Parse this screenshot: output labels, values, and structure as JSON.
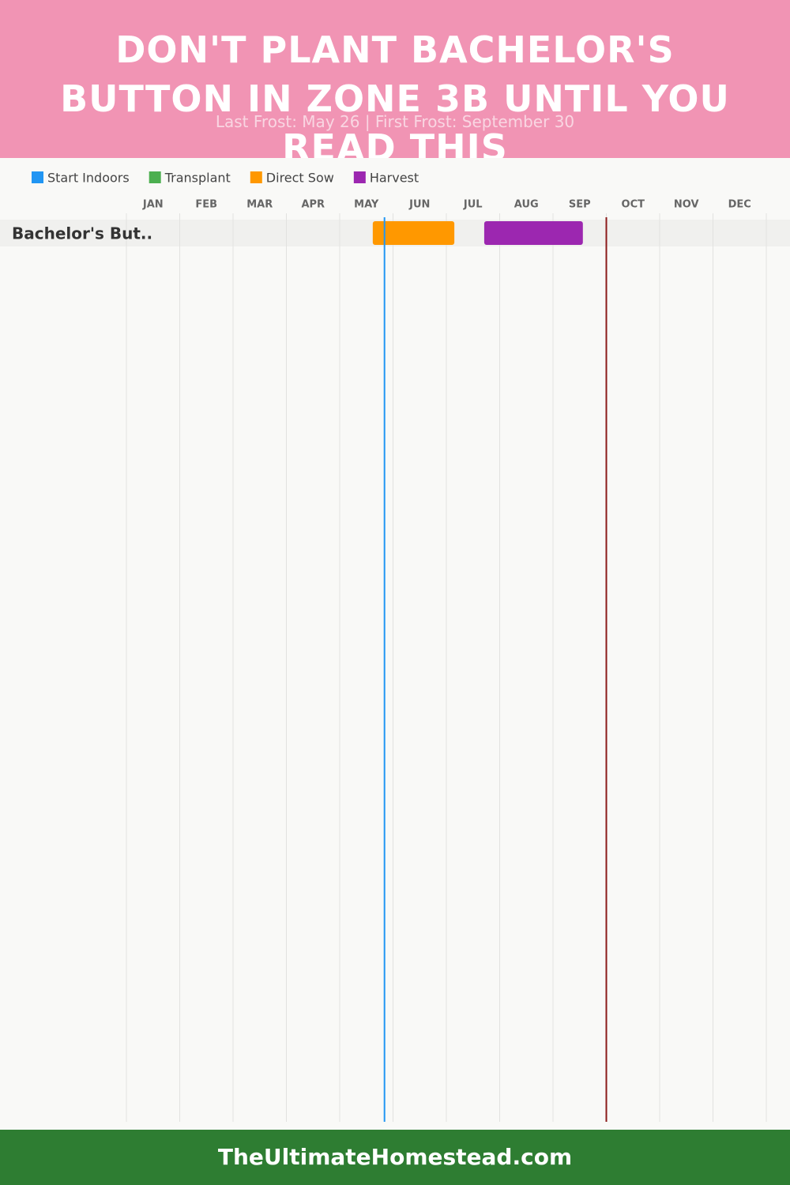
{
  "header": {
    "title": "DON'T PLANT BACHELOR'S BUTTON IN ZONE 3B UNTIL YOU READ THIS",
    "subtitle": "Last Frost: May 26 | First Frost: September 30"
  },
  "chart_data": {
    "type": "gantt",
    "categories": [
      "Bachelor's But.."
    ],
    "months": [
      "JAN",
      "FEB",
      "MAR",
      "APR",
      "MAY",
      "JUN",
      "JUL",
      "AUG",
      "SEP",
      "OCT",
      "NOV",
      "DEC"
    ],
    "xlim": [
      0,
      12
    ],
    "xticks": [
      0,
      1,
      2,
      3,
      4,
      5,
      6,
      7,
      8,
      9,
      10,
      11,
      12
    ],
    "grid": true,
    "series": [
      {
        "name": "Start Indoors",
        "color": "#2196f3",
        "ranges": [
          []
        ]
      },
      {
        "name": "Transplant",
        "color": "#4caf50",
        "ranges": [
          []
        ]
      },
      {
        "name": "Direct Sow",
        "color": "#ff9800",
        "ranges": [
          [
            4.62,
            6.15
          ]
        ]
      },
      {
        "name": "Harvest",
        "color": "#9c27b0",
        "ranges": [
          [
            6.71,
            8.56
          ]
        ]
      }
    ],
    "markers": [
      {
        "value": 4.84,
        "color": "#2196f3"
      },
      {
        "value": 9.0,
        "color": "#8b1a1a"
      }
    ]
  },
  "footer": "TheUltimateHomestead.com"
}
